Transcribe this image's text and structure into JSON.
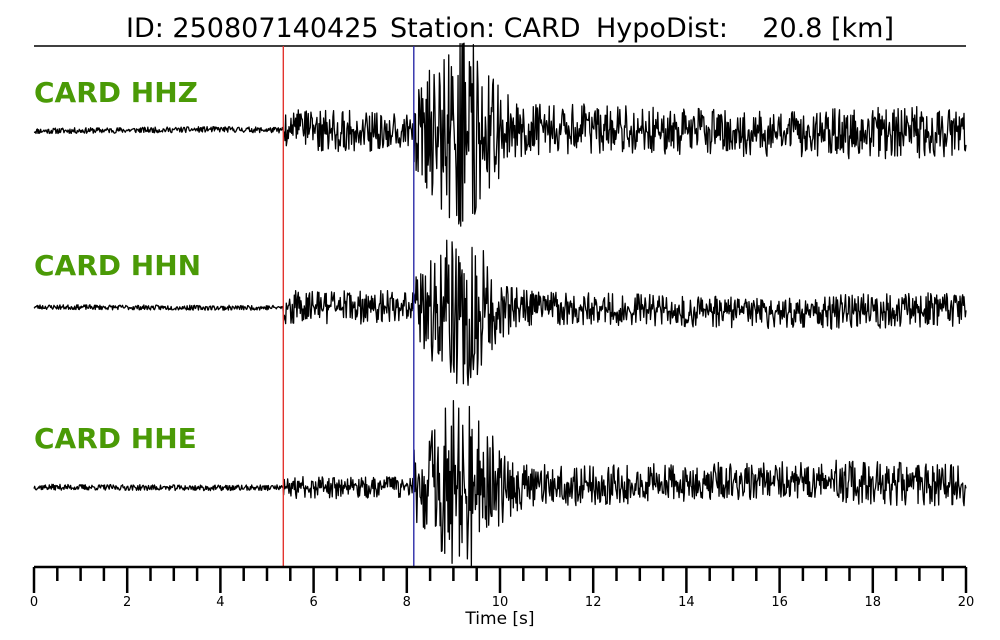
{
  "header": {
    "id_text": "ID: 250807140425",
    "station_text": "Station: CARD",
    "dist_text": "HypoDist:    20.8 [km]"
  },
  "colors": {
    "label": "#4a9a06",
    "trace": "#000000",
    "p_pick": "#e3342f",
    "s_pick": "#2b2ba8"
  },
  "chart_data": {
    "type": "line",
    "xlabel": "Time [s]",
    "xlim": [
      0,
      20
    ],
    "x_major_ticks": [
      0,
      2,
      4,
      6,
      8,
      10,
      12,
      14,
      16,
      18,
      20
    ],
    "x_minor_step": 0.5,
    "picks": [
      {
        "phase": "P",
        "time": 5.35,
        "color": "#e3342f"
      },
      {
        "phase": "S",
        "time": 8.15,
        "color": "#2b2ba8"
      }
    ],
    "series": [
      {
        "name": "CARD HHZ",
        "seed": 11,
        "pre_amp": 0.035,
        "p_amp": 0.22,
        "s_amp": 1.0,
        "coda_amp": 0.24,
        "drift": [
          0.0,
          0.02,
          -0.01,
          0.03,
          -0.04,
          0.0
        ]
      },
      {
        "name": "CARD HHN",
        "seed": 23,
        "pre_amp": 0.03,
        "p_amp": 0.18,
        "s_amp": 0.85,
        "coda_amp": 0.16,
        "drift": [
          0.0,
          -0.01,
          0.0,
          -0.02,
          -0.08,
          -0.02
        ]
      },
      {
        "name": "CARD HHE",
        "seed": 37,
        "pre_amp": 0.035,
        "p_amp": 0.12,
        "s_amp": 0.9,
        "coda_amp": 0.2,
        "drift": [
          -0.05,
          -0.06,
          -0.05,
          -0.03,
          0.04,
          -0.04
        ]
      }
    ]
  }
}
